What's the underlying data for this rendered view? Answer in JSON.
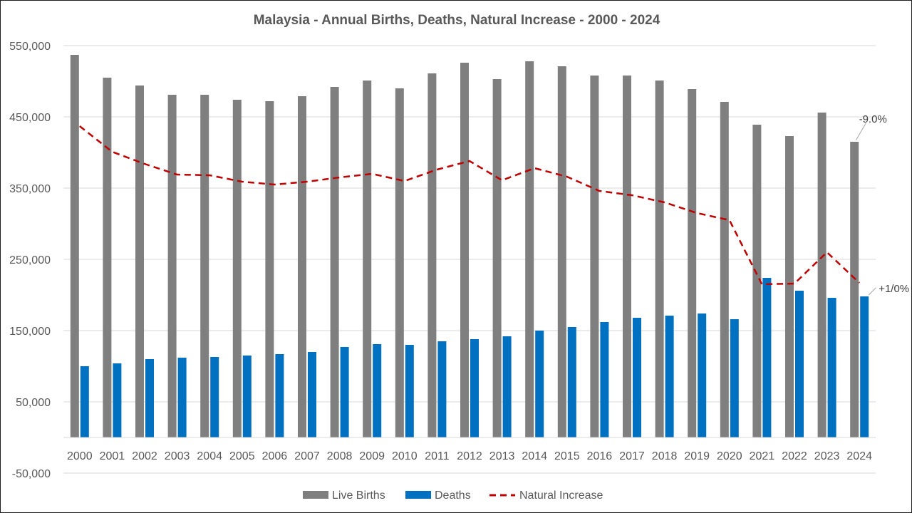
{
  "chart_data": {
    "type": "bar",
    "title": "Malaysia - Annual Births, Deaths, Natural Increase - 2000 - 2024",
    "categories": [
      "2000",
      "2001",
      "2002",
      "2003",
      "2004",
      "2005",
      "2006",
      "2007",
      "2008",
      "2009",
      "2010",
      "2011",
      "2012",
      "2013",
      "2014",
      "2015",
      "2016",
      "2017",
      "2018",
      "2019",
      "2020",
      "2021",
      "2022",
      "2023",
      "2024"
    ],
    "y_ticks": [
      550000,
      450000,
      350000,
      250000,
      150000,
      50000,
      -50000
    ],
    "y_tick_labels": [
      "550,000",
      "450,000",
      "350,000",
      "250,000",
      "150,000",
      "50,000",
      "-50,000"
    ],
    "ylim": [
      -50000,
      550000
    ],
    "baseline": 0,
    "grid": true,
    "legend_position": "bottom",
    "series": [
      {
        "name": "Live Births",
        "kind": "bar",
        "color": "#7f7f7f",
        "values": [
          537000,
          505000,
          494000,
          481000,
          481000,
          474000,
          472000,
          479000,
          492000,
          501000,
          490000,
          511000,
          526000,
          503000,
          528000,
          521000,
          508000,
          508000,
          501000,
          489000,
          471000,
          439000,
          423000,
          456000,
          415000
        ]
      },
      {
        "name": "Deaths",
        "kind": "bar",
        "color": "#0070c0",
        "values": [
          100000,
          104000,
          110000,
          112000,
          113000,
          115000,
          117000,
          120000,
          127000,
          131000,
          130000,
          135000,
          138000,
          142000,
          150000,
          155000,
          162000,
          168000,
          171000,
          174000,
          166000,
          224000,
          206000,
          196000,
          198000
        ]
      },
      {
        "name": "Natural Increase",
        "kind": "line",
        "color": "#c00000",
        "dashed": true,
        "values": [
          437000,
          401000,
          384000,
          369000,
          368000,
          359000,
          355000,
          359000,
          365000,
          370000,
          360000,
          376000,
          388000,
          361000,
          378000,
          366000,
          346000,
          340000,
          330000,
          315000,
          305000,
          215000,
          216000,
          260000,
          217000
        ]
      }
    ],
    "annotations": [
      {
        "text": "-9.0%",
        "series": "Live Births",
        "category": "2024"
      },
      {
        "text": "+1/0%",
        "series": "Deaths",
        "category": "2024"
      }
    ]
  }
}
